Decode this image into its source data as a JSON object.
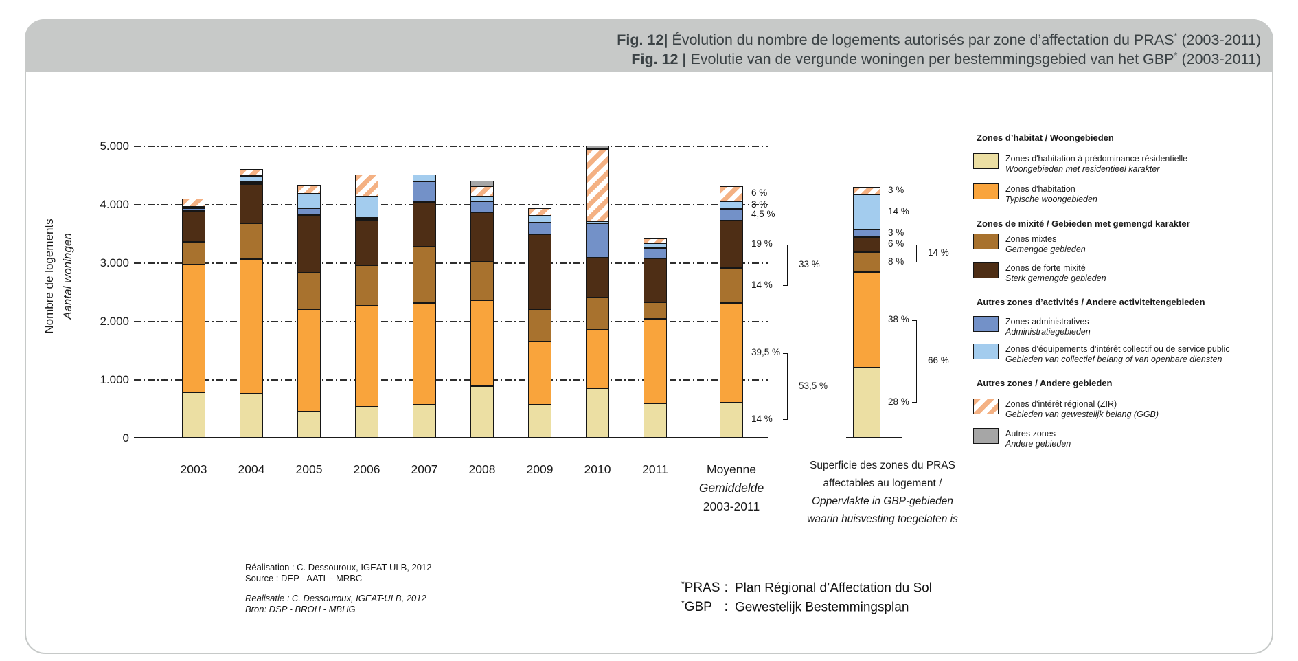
{
  "title": {
    "fr": {
      "fig": "Fig. 12|",
      "rest": " Évolution du nombre de logements autorisés par zone d’affectation du PRAS",
      "sup": "*",
      "suffix": " (2003-2011)"
    },
    "nl": {
      "fig": "Fig. 12 |",
      "rest": " Evolutie van de vergunde woningen per bestemmingsgebied van het GBP",
      "sup": "*",
      "suffix": " (2003-2011)"
    }
  },
  "y_axis": {
    "title_fr": "Nombre de logements",
    "title_nl": "Aantal woningen",
    "ticks": [
      {
        "label": "5.000",
        "value": 5000
      },
      {
        "label": "4.000",
        "value": 4000
      },
      {
        "label": "3.000",
        "value": 3000
      },
      {
        "label": "2.000",
        "value": 2000
      },
      {
        "label": "1.000",
        "value": 1000
      },
      {
        "label": "0",
        "value": 0
      }
    ]
  },
  "x_labels": {
    "years": [
      "2003",
      "2004",
      "2005",
      "2006",
      "2007",
      "2008",
      "2009",
      "2010",
      "2011"
    ],
    "moyenne": [
      "Moyenne",
      "Gemiddelde",
      "2003-2011"
    ],
    "moyenne_italic": [
      false,
      true,
      false
    ],
    "superficie": [
      "Superficie des zones du PRAS",
      "affectables au logement /",
      "Oppervlakte in GBP-gebieden",
      "waarin huisvesting toegelaten is"
    ],
    "superficie_italic": [
      false,
      false,
      true,
      true
    ]
  },
  "zones": [
    {
      "id": "residentielle",
      "color": "#ecdfa3",
      "hatch": false
    },
    {
      "id": "habitation",
      "color": "#f9a43c",
      "hatch": false
    },
    {
      "id": "mixte",
      "color": "#a8722e",
      "hatch": false
    },
    {
      "id": "forte",
      "color": "#4e2e15",
      "hatch": false
    },
    {
      "id": "admin",
      "color": "#7391c8",
      "hatch": false
    },
    {
      "id": "equip",
      "color": "#a3ccee",
      "hatch": false
    },
    {
      "id": "zir",
      "color": "#f4b183",
      "hatch": true
    },
    {
      "id": "autres",
      "color": "#a6a6a6",
      "hatch": false
    }
  ],
  "chart_data": {
    "type": "bar",
    "stacked": true,
    "title": "Évolution du nombre de logements autorisés par zone d'affectation du PRAS (2003-2011)",
    "ylabel": "Nombre de logements / Aantal woningen",
    "ylim": [
      0,
      5000
    ],
    "grid": "dashed horizontal",
    "legend_position": "right",
    "categories": [
      "2003",
      "2004",
      "2005",
      "2006",
      "2007",
      "2008",
      "2009",
      "2010",
      "2011",
      "moyenne",
      "superficie"
    ],
    "series": [
      {
        "id": "residentielle",
        "name": "Zones d'habitation à prédominance résidentielle",
        "values": [
          775,
          750,
          445,
          535,
          570,
          885,
          570,
          845,
          590,
          602,
          1201
        ]
      },
      {
        "id": "habitation",
        "name": "Zones d'habitation",
        "values": [
          2190,
          2310,
          1755,
          1725,
          1740,
          1465,
          1075,
          1000,
          1450,
          1699,
          1630
        ]
      },
      {
        "id": "mixte",
        "name": "Zones mixtes",
        "values": [
          390,
          610,
          625,
          690,
          960,
          665,
          550,
          550,
          275,
          602,
          343
        ]
      },
      {
        "id": "forte",
        "name": "Zones de forte mixité",
        "values": [
          530,
          670,
          985,
          785,
          765,
          840,
          1290,
          685,
          760,
          817,
          257
        ]
      },
      {
        "id": "admin",
        "name": "Zones administratives",
        "values": [
          45,
          35,
          125,
          25,
          350,
          195,
          195,
          590,
          175,
          194,
          129
        ]
      },
      {
        "id": "equip",
        "name": "Zones d'équipements d'intérêt collectif ou de service public",
        "values": [
          20,
          105,
          240,
          375,
          120,
          80,
          115,
          40,
          85,
          129,
          601
        ]
      },
      {
        "id": "zir",
        "name": "Zones d'intérêt régional (ZIR)",
        "values": [
          140,
          120,
          150,
          375,
          0,
          175,
          135,
          1230,
          80,
          258,
          129
        ]
      },
      {
        "id": "autres",
        "name": "Autres zones",
        "values": [
          0,
          0,
          0,
          0,
          0,
          100,
          0,
          55,
          0,
          0,
          0
        ]
      }
    ],
    "annotations": {
      "moyenne_percents": [
        {
          "zone": "zir",
          "label": "6 %"
        },
        {
          "zone": "equip",
          "label": "3 %"
        },
        {
          "zone": "admin",
          "label": "4,5 %"
        },
        {
          "zone": "forte",
          "label": "19 %"
        },
        {
          "zone": "mixte",
          "label": "14 %"
        },
        {
          "zone": "habitation",
          "label": "39,5 %"
        },
        {
          "zone": "residentielle",
          "label": "14 %"
        }
      ],
      "moyenne_brackets": [
        {
          "label": "33 %",
          "from": "forte",
          "to": "mixte"
        },
        {
          "label": "53,5 %",
          "from": "habitation",
          "to": "residentielle"
        }
      ],
      "superficie_percents": [
        {
          "zone": "zir",
          "label": "3 %"
        },
        {
          "zone": "equip",
          "label": "14 %"
        },
        {
          "zone": "admin",
          "label": "3 %"
        },
        {
          "zone": "forte",
          "label": "6 %"
        },
        {
          "zone": "mixte",
          "label": "8 %"
        },
        {
          "zone": "habitation",
          "label": "38 %"
        },
        {
          "zone": "residentielle",
          "label": "28 %"
        }
      ],
      "superficie_brackets": [
        {
          "label": "14 %",
          "from": "forte",
          "to": "mixte"
        },
        {
          "label": "66 %",
          "from": "habitation",
          "to": "residentielle"
        }
      ]
    }
  },
  "legend": {
    "groups": [
      {
        "header": "Zones d’habitat / Woongebieden",
        "items": [
          {
            "zone": "residentielle",
            "fr": "Zones d'habitation à prédominance résidentielle",
            "nl": "Woongebieden met residentieel karakter"
          },
          {
            "zone": "habitation",
            "fr": "Zones d'habitation",
            "nl": "Typische woongebieden"
          }
        ]
      },
      {
        "header": "Zones de mixité / Gebieden met gemengd karakter",
        "items": [
          {
            "zone": "mixte",
            "fr": "Zones mixtes",
            "nl": "Gemengde gebieden"
          },
          {
            "zone": "forte",
            "fr": "Zones de forte mixité",
            "nl": "Sterk gemengde gebieden"
          }
        ]
      },
      {
        "header": "Autres zones d’activités / Andere activiteitengebieden",
        "items": [
          {
            "zone": "admin",
            "fr": "Zones administratives",
            "nl": "Administratiegebieden"
          },
          {
            "zone": "equip",
            "fr": "Zones d’équipements d’intérêt collectif ou de service public",
            "nl": "Gebieden van collectief belang of van openbare diensten"
          }
        ]
      },
      {
        "header": "Autres zones / Andere gebieden",
        "items": [
          {
            "zone": "zir",
            "fr": "Zones d'intérêt régional (ZIR)",
            "nl": "Gebieden van gewestelijk belang (GGB)"
          },
          {
            "zone": "autres",
            "fr": "Autres zones",
            "nl": "Andere gebieden"
          }
        ]
      }
    ]
  },
  "credits": {
    "fr": [
      "Réalisation : C. Dessouroux, IGEAT-ULB, 2012",
      "Source : DEP - AATL - MRBC"
    ],
    "nl": [
      "Realisatie : C. Dessouroux, IGEAT-ULB, 2012",
      "Bron: DSP - BROH - MBHG"
    ]
  },
  "footnotes": [
    {
      "sup": "*",
      "term": "PRAS",
      "colon": ":",
      "def": "Plan Régional d’Affectation du Sol"
    },
    {
      "sup": "*",
      "term": "GBP",
      "colon": ":",
      "def": "Gewestelijk Bestemmingsplan"
    }
  ],
  "ui_colors": {
    "band": "#c7c9c8",
    "panel_border": "#c6c9c8",
    "title_text": "#3a4144"
  }
}
